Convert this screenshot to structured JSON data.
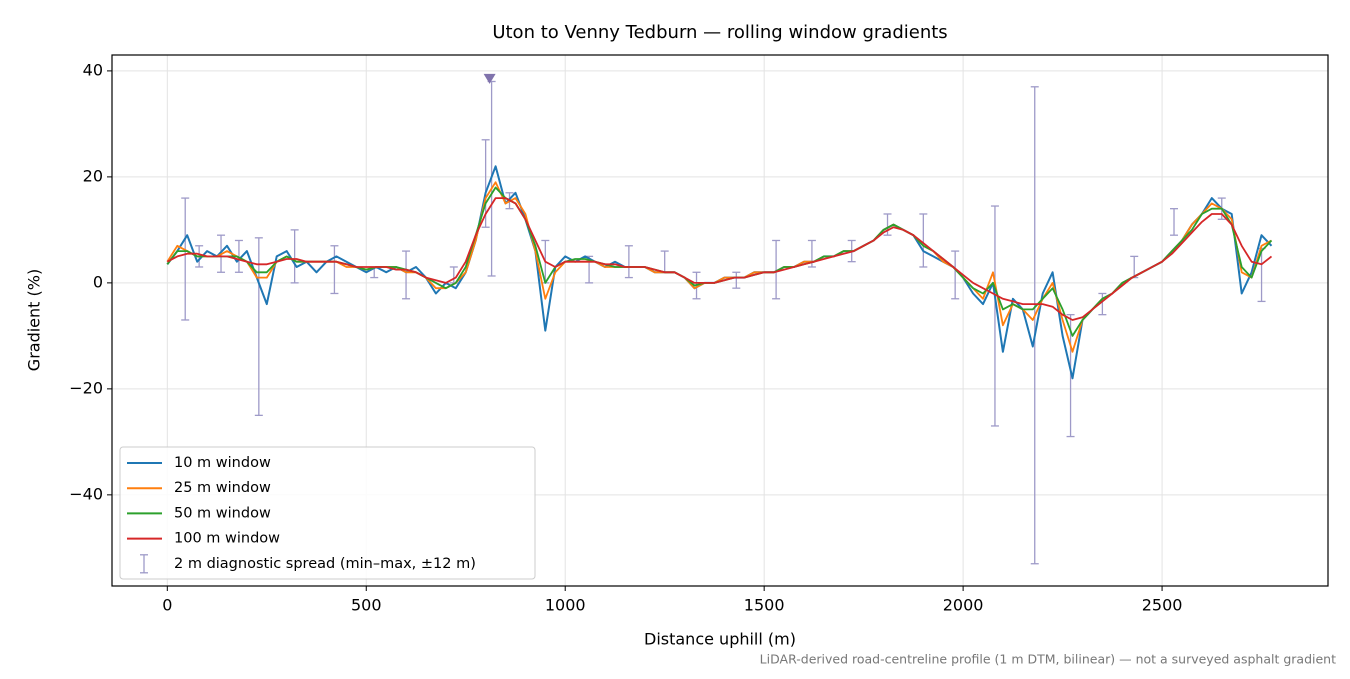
{
  "chart_data": {
    "type": "line",
    "title": "Uton to Venny Tedburn — rolling window gradients",
    "xlabel": "Distance uphill (m)",
    "ylabel": "Gradient (%)",
    "note": "LiDAR-derived road-centreline profile (1 m DTM, bilinear) — not a surveyed asphalt gradient",
    "x": [
      0,
      25,
      50,
      75,
      100,
      125,
      150,
      175,
      200,
      225,
      250,
      275,
      300,
      325,
      350,
      375,
      400,
      425,
      450,
      475,
      500,
      525,
      550,
      575,
      600,
      625,
      650,
      675,
      700,
      725,
      750,
      775,
      800,
      825,
      850,
      875,
      900,
      925,
      950,
      975,
      1000,
      1025,
      1050,
      1075,
      1100,
      1125,
      1150,
      1175,
      1200,
      1225,
      1250,
      1275,
      1300,
      1325,
      1350,
      1375,
      1400,
      1425,
      1450,
      1475,
      1500,
      1525,
      1550,
      1575,
      1600,
      1625,
      1650,
      1675,
      1700,
      1725,
      1750,
      1775,
      1800,
      1825,
      1850,
      1875,
      1900,
      1925,
      1950,
      1975,
      2000,
      2025,
      2050,
      2075,
      2100,
      2125,
      2150,
      2175,
      2200,
      2225,
      2250,
      2275,
      2300,
      2325,
      2350,
      2375,
      2400,
      2425,
      2450,
      2475,
      2500,
      2525,
      2550,
      2575,
      2600,
      2625,
      2650,
      2675,
      2700,
      2725,
      2750,
      2775
    ],
    "series": [
      {
        "name": "10 m window",
        "color": "#1f77b4",
        "values": [
          3.5,
          6,
          9,
          4,
          6,
          5,
          7,
          4,
          6,
          1,
          -4,
          5,
          6,
          3,
          4,
          2,
          4,
          5,
          4,
          3,
          2,
          3,
          2,
          3,
          2,
          3,
          1,
          -2,
          0,
          -1,
          2,
          8,
          17,
          22,
          15,
          17,
          12,
          6,
          -9,
          3,
          5,
          4,
          5,
          4,
          3,
          4,
          3,
          3,
          3,
          2,
          2,
          2,
          1,
          -1,
          0,
          0,
          1,
          1,
          1,
          2,
          2,
          2,
          3,
          3,
          4,
          4,
          5,
          5,
          6,
          6,
          7,
          8,
          10,
          11,
          10,
          9,
          6,
          5,
          4,
          3,
          1,
          -2,
          -4,
          0,
          -13,
          -3,
          -5,
          -12,
          -2,
          2,
          -10,
          -18,
          -7,
          -5,
          -3,
          -2,
          0,
          1,
          2,
          3,
          4,
          6,
          8,
          11,
          13,
          16,
          14,
          13,
          -2,
          2,
          9,
          7
        ]
      },
      {
        "name": "25 m window",
        "color": "#ff7f0e",
        "values": [
          4,
          7,
          6,
          5,
          5,
          5,
          6,
          5,
          4,
          1,
          1,
          4,
          5,
          4,
          4,
          4,
          4,
          4,
          3,
          3,
          2.5,
          3,
          3,
          3,
          2,
          2,
          1,
          -1,
          -1,
          0,
          2,
          8,
          16,
          19,
          15,
          16,
          13,
          6,
          -3,
          2,
          4,
          4,
          4,
          4,
          3,
          3,
          3,
          3,
          3,
          2,
          2,
          2,
          1,
          -1,
          0,
          0,
          1,
          1,
          1,
          2,
          2,
          2,
          3,
          3,
          4,
          4,
          5,
          5,
          6,
          6,
          7,
          8,
          10,
          11,
          10,
          9,
          7,
          6,
          4,
          3,
          1,
          -1,
          -3,
          2,
          -8,
          -4,
          -5,
          -7,
          -3,
          0,
          -7,
          -13,
          -7,
          -5,
          -3,
          -2,
          0,
          1,
          2,
          3,
          4,
          6,
          8,
          11,
          13,
          15,
          14,
          12,
          2,
          1,
          7,
          8
        ]
      },
      {
        "name": "50 m window",
        "color": "#2ca02c",
        "values": [
          3.5,
          6,
          6,
          5,
          5,
          5,
          5,
          5,
          4,
          2,
          2,
          4,
          5,
          4,
          4,
          4,
          4,
          4,
          3.5,
          3,
          2.5,
          3,
          3,
          3,
          2.5,
          2,
          1,
          0,
          -1,
          0,
          3,
          9,
          15,
          18,
          16,
          15,
          12,
          7,
          0,
          3,
          4,
          4.5,
          4.5,
          4,
          3.5,
          3,
          3,
          3,
          3,
          2.5,
          2,
          2,
          1,
          -0.5,
          0,
          0,
          0.5,
          1,
          1,
          1.5,
          2,
          2,
          3,
          3,
          3.5,
          4,
          5,
          5,
          6,
          6,
          7,
          8,
          10,
          11,
          10,
          9,
          7,
          6,
          4.5,
          3,
          1,
          -1,
          -2,
          0,
          -5,
          -4,
          -5,
          -5,
          -3,
          -1,
          -5,
          -10,
          -7,
          -5,
          -3,
          -2,
          0,
          1,
          2,
          3,
          4,
          6,
          8,
          10,
          13,
          14,
          14,
          11,
          3,
          1,
          6,
          8
        ]
      },
      {
        "name": "100 m window",
        "color": "#d62728",
        "values": [
          4,
          5,
          5.5,
          5.5,
          5,
          5,
          5,
          4.5,
          4,
          3.5,
          3.5,
          4,
          4.5,
          4.5,
          4,
          4,
          4,
          4,
          3.5,
          3,
          3,
          3,
          3,
          2.5,
          2.5,
          2,
          1,
          0.5,
          0,
          1,
          4,
          9,
          13,
          16,
          16,
          15,
          12,
          8,
          4,
          3,
          4,
          4,
          4,
          4,
          3.5,
          3.5,
          3,
          3,
          3,
          2.5,
          2,
          2,
          1,
          0,
          0,
          0,
          0.5,
          1,
          1,
          1.5,
          2,
          2,
          2.5,
          3,
          3.5,
          4,
          4.5,
          5,
          5.5,
          6,
          7,
          8,
          9.5,
          10.5,
          10,
          9,
          7.5,
          6,
          4.5,
          3,
          1.5,
          0,
          -1,
          -2,
          -3,
          -3.5,
          -4,
          -4,
          -4,
          -4.5,
          -6,
          -7,
          -6.5,
          -5,
          -3.5,
          -2,
          -0.5,
          1,
          2,
          3,
          4,
          5.5,
          7.5,
          9.5,
          11.5,
          13,
          13,
          11,
          7,
          4,
          3.5,
          5
        ]
      }
    ],
    "errorbars": {
      "name": "2 m diagnostic spread (min–max, ±12 m)",
      "color": "#9e9ac8",
      "x": [
        45,
        80,
        135,
        180,
        230,
        320,
        420,
        520,
        600,
        720,
        800,
        815,
        860,
        950,
        1060,
        1160,
        1250,
        1330,
        1430,
        1530,
        1620,
        1720,
        1810,
        1900,
        1980,
        2080,
        2180,
        2270,
        2350,
        2430,
        2530,
        2650,
        2750
      ],
      "low": [
        -7,
        3,
        2,
        2,
        -25,
        0,
        -2,
        1,
        -3,
        0,
        10.5,
        1.3,
        14,
        0,
        0,
        1,
        2,
        -3,
        -1,
        -3,
        3,
        4,
        9,
        3,
        -3,
        -27,
        -53,
        -29,
        -6,
        1,
        9,
        12,
        -3.5
      ],
      "high": [
        16,
        7,
        9,
        8,
        8.5,
        10,
        7,
        3,
        6,
        3,
        27,
        38,
        17,
        8,
        5,
        7,
        6,
        2,
        2,
        8,
        8,
        8,
        13,
        13,
        6,
        14.5,
        37,
        -6,
        -2,
        5,
        14,
        16,
        6.5
      ]
    },
    "peak_marker": {
      "x": 810,
      "y": 38.5,
      "color": "#8073ac"
    },
    "xlim": [
      -139,
      2917
    ],
    "ylim": [
      -57.2,
      43.0
    ],
    "xticks": [
      0,
      500,
      1000,
      1500,
      2000,
      2500
    ],
    "yticks": [
      {
        "value": -40,
        "label": "−40"
      },
      {
        "value": -20,
        "label": "−20"
      },
      0,
      20,
      40
    ],
    "grid": true,
    "legend": "lower left"
  }
}
